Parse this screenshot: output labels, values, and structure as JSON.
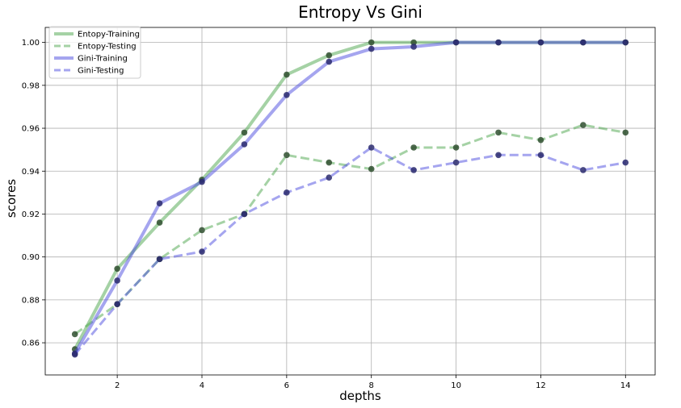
{
  "chart_data": {
    "type": "line",
    "title": "Entropy Vs Gini",
    "xlabel": "depths",
    "ylabel": "scores",
    "xlim": [
      0.3,
      14.7
    ],
    "ylim": [
      0.845,
      1.007
    ],
    "xticks": [
      2,
      4,
      6,
      8,
      10,
      12,
      14
    ],
    "yticks": [
      0.86,
      0.88,
      0.9,
      0.92,
      0.94,
      0.96,
      0.98,
      1.0
    ],
    "xtick_labels": [
      "2",
      "4",
      "6",
      "8",
      "10",
      "12",
      "14"
    ],
    "ytick_labels": [
      "0.86",
      "0.88",
      "0.90",
      "0.92",
      "0.94",
      "0.96",
      "0.98",
      "1.00"
    ],
    "grid": true,
    "legend_position": "top-left",
    "x": [
      1,
      2,
      3,
      4,
      5,
      6,
      7,
      8,
      9,
      10,
      11,
      12,
      13,
      14
    ],
    "series": [
      {
        "name": "Entopy-Training",
        "color": "#4ca64c",
        "dash": "solid",
        "marker_color": "#2f4f2f",
        "values": [
          0.857,
          0.8945,
          0.916,
          0.936,
          0.958,
          0.985,
          0.994,
          1.0,
          1.0,
          1.0,
          1.0,
          1.0,
          1.0,
          1.0
        ]
      },
      {
        "name": "Entopy-Testing",
        "color": "#4ca64c",
        "dash": "dashed",
        "marker_color": "#2f4f2f",
        "values": [
          0.864,
          0.878,
          0.899,
          0.9125,
          0.92,
          0.9475,
          0.944,
          0.941,
          0.951,
          0.951,
          0.958,
          0.9545,
          0.9615,
          0.958
        ]
      },
      {
        "name": "Gini-Training",
        "color": "#4c4ce0",
        "dash": "solid",
        "marker_color": "#2a2a6e",
        "values": [
          0.855,
          0.889,
          0.925,
          0.935,
          0.9525,
          0.9755,
          0.991,
          0.997,
          0.998,
          1.0,
          1.0,
          1.0,
          1.0,
          1.0
        ]
      },
      {
        "name": "Gini-Testing",
        "color": "#4c4ce0",
        "dash": "dashed",
        "marker_color": "#2a2a6e",
        "values": [
          0.8545,
          0.878,
          0.899,
          0.9025,
          0.92,
          0.93,
          0.937,
          0.951,
          0.9405,
          0.944,
          0.9475,
          0.9475,
          0.9405,
          0.944
        ]
      }
    ]
  }
}
